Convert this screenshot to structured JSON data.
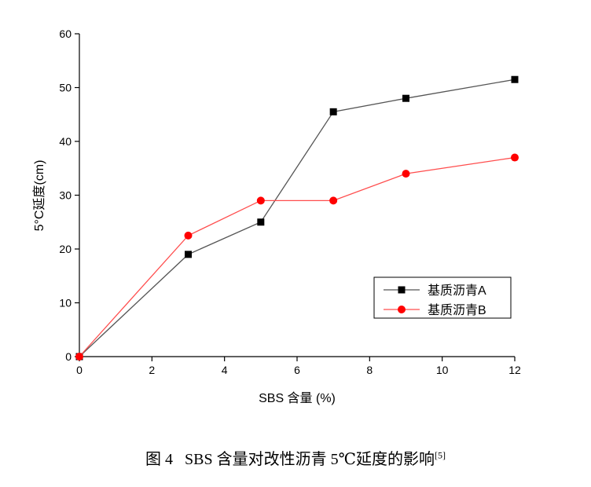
{
  "chart_data": {
    "type": "line",
    "x": [
      0,
      3,
      5,
      7,
      9,
      12
    ],
    "series": [
      {
        "name": "基质沥青A",
        "color": "#000000",
        "line_color": "#555555",
        "marker": "square",
        "values": [
          0,
          19,
          25,
          45.5,
          48,
          51.5
        ]
      },
      {
        "name": "基质沥青B",
        "color": "#ff0000",
        "line_color": "#ff4d4d",
        "marker": "circle",
        "values": [
          0,
          22.5,
          29,
          29,
          34,
          37
        ]
      }
    ],
    "xlabel": "SBS 含量 (%)",
    "ylabel": "5°C延度(cm)",
    "xlim": [
      0,
      12
    ],
    "ylim": [
      0,
      60
    ],
    "xticks": [
      0,
      2,
      4,
      6,
      8,
      10,
      12
    ],
    "yticks": [
      0,
      10,
      20,
      30,
      40,
      50,
      60
    ],
    "grid": false,
    "legend_position": "lower-right"
  },
  "caption": {
    "text": "图 4   SBS 含量对改性沥青 5℃延度的影响",
    "citation": "[5]"
  }
}
